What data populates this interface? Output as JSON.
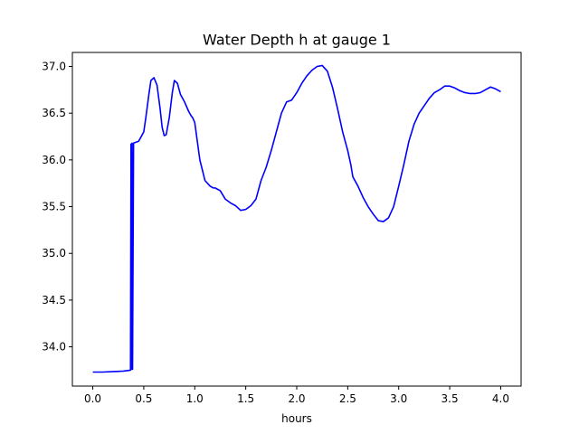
{
  "chart_data": {
    "type": "line",
    "title": "Water Depth h at gauge 1",
    "xlabel": "hours",
    "ylabel": "",
    "xlim": [
      -0.2,
      4.2
    ],
    "ylim": [
      33.58,
      37.15
    ],
    "grid": false,
    "xticks": [
      0.0,
      0.5,
      1.0,
      1.5,
      2.0,
      2.5,
      3.0,
      3.5,
      4.0
    ],
    "xtick_labels": [
      "0.0",
      "0.5",
      "1.0",
      "1.5",
      "2.0",
      "2.5",
      "3.0",
      "3.5",
      "4.0"
    ],
    "yticks": [
      34.0,
      34.5,
      35.0,
      35.5,
      36.0,
      36.5,
      37.0
    ],
    "ytick_labels": [
      "34.0",
      "34.5",
      "35.0",
      "35.5",
      "36.0",
      "36.5",
      "37.0"
    ],
    "series": [
      {
        "color": "#0000ff",
        "x": [
          0.0,
          0.1,
          0.2,
          0.3,
          0.37,
          0.375,
          0.38,
          0.385,
          0.39,
          0.4,
          0.45,
          0.5,
          0.52,
          0.55,
          0.57,
          0.6,
          0.63,
          0.66,
          0.68,
          0.7,
          0.72,
          0.75,
          0.78,
          0.8,
          0.83,
          0.86,
          0.9,
          0.94,
          0.96,
          0.98,
          1.0,
          1.05,
          1.1,
          1.15,
          1.18,
          1.2,
          1.25,
          1.3,
          1.35,
          1.4,
          1.45,
          1.5,
          1.55,
          1.6,
          1.65,
          1.7,
          1.75,
          1.8,
          1.85,
          1.9,
          1.95,
          2.0,
          2.05,
          2.1,
          2.15,
          2.2,
          2.25,
          2.3,
          2.35,
          2.4,
          2.45,
          2.5,
          2.53,
          2.55,
          2.6,
          2.65,
          2.7,
          2.75,
          2.8,
          2.85,
          2.9,
          2.95,
          3.0,
          3.05,
          3.1,
          3.15,
          3.2,
          3.25,
          3.3,
          3.35,
          3.4,
          3.45,
          3.5,
          3.55,
          3.6,
          3.65,
          3.7,
          3.75,
          3.8,
          3.85,
          3.9,
          3.95,
          4.0
        ],
        "y": [
          33.73,
          33.73,
          33.735,
          33.74,
          33.75,
          36.17,
          33.76,
          36.18,
          33.76,
          36.18,
          36.2,
          36.3,
          36.45,
          36.7,
          36.85,
          36.88,
          36.8,
          36.55,
          36.35,
          36.26,
          36.27,
          36.45,
          36.72,
          36.85,
          36.82,
          36.7,
          36.62,
          36.52,
          36.48,
          36.45,
          36.4,
          36.0,
          35.78,
          35.72,
          35.7,
          35.7,
          35.67,
          35.58,
          35.54,
          35.51,
          35.46,
          35.47,
          35.51,
          35.58,
          35.78,
          35.92,
          36.1,
          36.3,
          36.5,
          36.62,
          36.64,
          36.72,
          36.82,
          36.9,
          36.96,
          37.0,
          37.01,
          36.95,
          36.78,
          36.55,
          36.3,
          36.1,
          35.95,
          35.82,
          35.72,
          35.6,
          35.5,
          35.42,
          35.35,
          35.34,
          35.38,
          35.5,
          35.72,
          35.95,
          36.2,
          36.38,
          36.5,
          36.58,
          36.66,
          36.72,
          36.75,
          36.79,
          36.79,
          36.77,
          36.74,
          36.72,
          36.71,
          36.71,
          36.72,
          36.75,
          36.78,
          36.76,
          36.73
        ]
      }
    ]
  }
}
